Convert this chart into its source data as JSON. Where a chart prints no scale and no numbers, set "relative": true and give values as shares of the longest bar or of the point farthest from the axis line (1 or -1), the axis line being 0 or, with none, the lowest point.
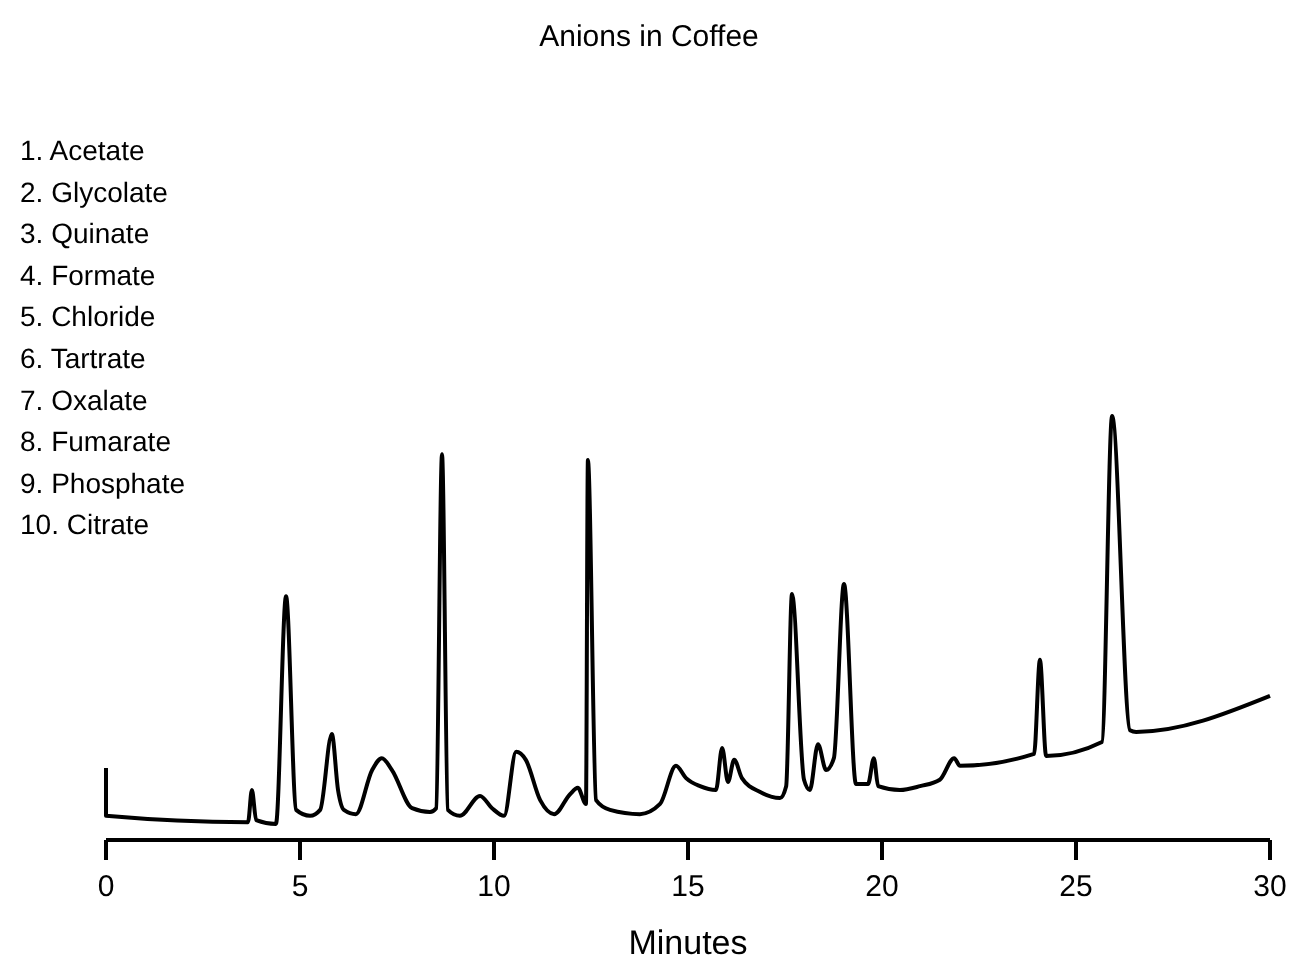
{
  "chart_data": {
    "type": "line",
    "title": "Anions in Coffee",
    "xlabel": "Minutes",
    "relative": true,
    "xlim": [
      0,
      30
    ],
    "xticks": [
      0,
      5,
      10,
      15,
      20,
      25,
      30
    ],
    "grid": false,
    "marker": "none",
    "line_style": "solid",
    "annotations": [
      "1.  Acetate",
      "2.  Glycolate",
      "3.  Quinate",
      "4.  Formate",
      "5.  Chloride",
      "6.  Tartrate",
      "7.  Oxalate",
      "8.  Fumarate",
      "9.  Phosphate",
      "10.  Citrate"
    ],
    "series": [
      {
        "color": "#000000",
        "x": [
          0,
          0,
          3.66,
          3.76,
          3.87,
          4.38,
          4.64,
          4.9,
          5.26,
          5.52,
          5.82,
          5.98,
          6.13,
          6.44,
          6.86,
          7.11,
          7.37,
          7.89,
          8.35,
          8.51,
          8.66,
          8.81,
          9.12,
          9.64,
          9.95,
          10.26,
          10.57,
          10.82,
          11.19,
          11.55,
          11.96,
          12.16,
          12.37,
          12.42,
          12.63,
          12.99,
          13.76,
          14.28,
          14.69,
          14.95,
          15.31,
          15.72,
          15.88,
          16.03,
          16.19,
          16.39,
          16.86,
          17.37,
          17.53,
          17.68,
          17.99,
          18.14,
          18.35,
          18.56,
          18.76,
          19.02,
          19.33,
          19.64,
          19.79,
          19.9,
          20.46,
          20.98,
          21.49,
          21.86,
          22.01,
          23.92,
          24.07,
          24.23,
          25.67,
          25.93,
          26.39,
          26.55,
          30
        ],
        "values": [
          0.17,
          0.057,
          0.042,
          0.118,
          0.047,
          0.038,
          0.575,
          0.071,
          0.057,
          0.071,
          0.25,
          0.118,
          0.071,
          0.061,
          0.165,
          0.193,
          0.165,
          0.075,
          0.066,
          0.075,
          0.91,
          0.071,
          0.057,
          0.104,
          0.075,
          0.057,
          0.208,
          0.189,
          0.094,
          0.061,
          0.108,
          0.123,
          0.085,
          0.896,
          0.094,
          0.071,
          0.061,
          0.085,
          0.175,
          0.146,
          0.127,
          0.118,
          0.217,
          0.137,
          0.189,
          0.146,
          0.113,
          0.099,
          0.127,
          0.58,
          0.142,
          0.118,
          0.226,
          0.165,
          0.193,
          0.604,
          0.132,
          0.132,
          0.193,
          0.127,
          0.118,
          0.127,
          0.142,
          0.193,
          0.175,
          0.203,
          0.425,
          0.198,
          0.231,
          1,
          0.259,
          0.255,
          0.34
        ]
      }
    ]
  }
}
